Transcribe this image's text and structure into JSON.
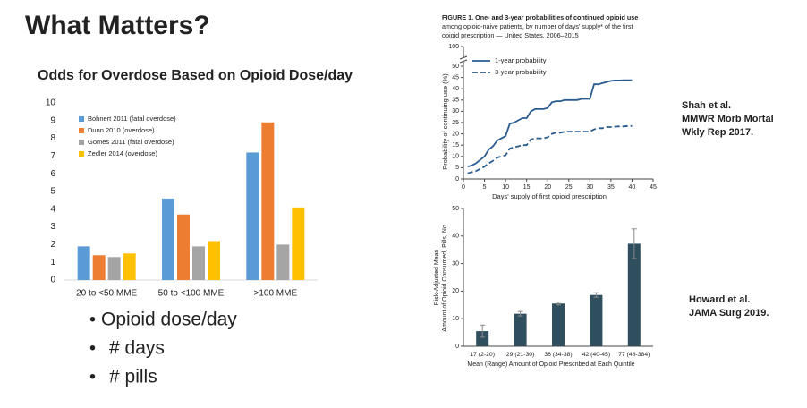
{
  "slide": {
    "title": "What Matters?",
    "bullets": [
      "Opioid dose/day",
      "# days",
      "# pills"
    ],
    "citations": [
      [
        "Shah et al.",
        "MMWR Morb Mortal",
        "Wkly Rep 2017."
      ],
      [
        "Howard et al.",
        "JAMA Surg 2019."
      ]
    ]
  },
  "chart_data": [
    {
      "type": "bar",
      "title": "Odds for Overdose Based on Opioid Dose/day",
      "categories": [
        "20 to <50 MME",
        "50 to <100 MME",
        ">100 MME"
      ],
      "series": [
        {
          "name": "Bohnert 2011 (fatal overdose)",
          "color": "#5b9bd5",
          "values": [
            1.9,
            4.6,
            7.2
          ]
        },
        {
          "name": "Dunn 2010 (overdose)",
          "color": "#ed7d31",
          "values": [
            1.4,
            3.7,
            8.9
          ]
        },
        {
          "name": "Gomes 2011 (fatal overdose)",
          "color": "#a5a5a5",
          "values": [
            1.3,
            1.9,
            2.0
          ]
        },
        {
          "name": "Zedler 2014 (overdose)",
          "color": "#ffc000",
          "values": [
            1.5,
            2.2,
            4.1
          ]
        }
      ],
      "ylim": [
        0,
        10
      ],
      "yticks": [
        0,
        1,
        2,
        3,
        4,
        5,
        6,
        7,
        8,
        9,
        10
      ],
      "grid": false,
      "legend": "top-left"
    },
    {
      "type": "line",
      "title": [
        "FIGURE 1. One- and 3-year probabilities of continued opioid use",
        "among opioid-naive patients, by number of days' supply* of the first",
        "opioid prescription — United States, 2006–2015"
      ],
      "x_label": "Days' supply of first opioid prescription",
      "y_label": "Probability of continuing use (%)",
      "x": [
        1,
        2,
        3,
        4,
        5,
        6,
        7,
        8,
        9,
        10,
        11,
        12,
        13,
        14,
        15,
        16,
        17,
        18,
        19,
        20,
        21,
        22,
        23,
        24,
        25,
        26,
        27,
        28,
        29,
        30,
        31,
        32,
        33,
        34,
        35,
        36,
        37,
        38,
        39,
        40
      ],
      "series": [
        {
          "name": "1-year probability",
          "color": "#2a5d8f",
          "dash": false,
          "values": [
            5.5,
            6,
            7,
            8.5,
            10,
            13,
            14.5,
            17,
            18,
            19,
            24.5,
            25,
            26,
            27,
            27,
            30,
            31,
            31,
            31,
            31.5,
            34,
            34.5,
            34.5,
            35,
            35,
            35,
            35,
            35.5,
            35.5,
            35.5,
            42,
            42,
            42.5,
            43,
            43.5,
            43.7,
            43.7,
            43.8,
            43.8,
            43.8
          ]
        },
        {
          "name": "3-year probability",
          "color": "#2a5d8f",
          "dash": true,
          "values": [
            2.5,
            3,
            3.5,
            4.5,
            5.5,
            7,
            8,
            9.5,
            10,
            10.5,
            13.5,
            14,
            14.5,
            15,
            15,
            17.5,
            18,
            18,
            18,
            18.5,
            20,
            20.5,
            20.5,
            21,
            21,
            21,
            21,
            21,
            21,
            21,
            22,
            22.5,
            22.5,
            23,
            23,
            23.2,
            23.3,
            23.3,
            23.5,
            23.5
          ]
        }
      ],
      "xlim": [
        0,
        45
      ],
      "xticks": [
        0,
        5,
        10,
        15,
        20,
        25,
        30,
        35,
        40,
        45
      ],
      "ylim": [
        0,
        100
      ],
      "yticks": [
        0,
        5,
        10,
        15,
        20,
        25,
        30,
        35,
        40,
        45,
        50,
        100
      ],
      "axis_break": true,
      "legend": "top-left"
    },
    {
      "type": "errorbar",
      "x_label": "Mean (Range) Amount of Opioid Prescribed at Each Quintile",
      "y_label": [
        "Risk-Adjusted Mean",
        "Amount of Opioid Consumed, Pills, No."
      ],
      "categories": [
        "17 (2-20)",
        "29 (21-30)",
        "36 (34-38)",
        "42 (40-45)",
        "77 (48-384)"
      ],
      "values": [
        5.5,
        11.8,
        15.5,
        18.6,
        37.2
      ],
      "errors": [
        2.2,
        0.8,
        0.5,
        0.8,
        5.4
      ],
      "color": "#2f4f5f",
      "ylim": [
        0,
        50
      ],
      "yticks": [
        0,
        10,
        20,
        30,
        40,
        50
      ]
    }
  ]
}
